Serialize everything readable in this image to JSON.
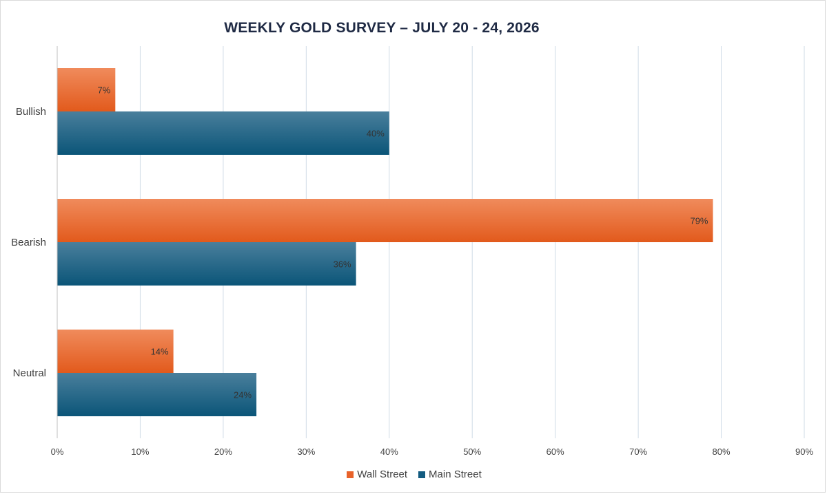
{
  "chart_data": {
    "type": "bar",
    "orientation": "horizontal",
    "title": "WEEKLY GOLD SURVEY – JULY 20 - 24, 2026",
    "categories": [
      "Bullish",
      "Bearish",
      "Neutral"
    ],
    "series": [
      {
        "name": "Wall Street",
        "values": [
          7,
          79,
          14
        ],
        "color": "#e8622a"
      },
      {
        "name": "Main Street",
        "values": [
          40,
          36,
          24
        ],
        "color": "#125b80"
      }
    ],
    "data_labels": {
      "Wall Street": [
        "7%",
        "79%",
        "14%"
      ],
      "Main Street": [
        "40%",
        "36%",
        "24%"
      ]
    },
    "x_ticks": [
      "0%",
      "10%",
      "20%",
      "30%",
      "40%",
      "50%",
      "60%",
      "70%",
      "80%",
      "90%"
    ],
    "xlim": [
      0,
      90
    ],
    "grid": true,
    "legend_position": "bottom",
    "xlabel": "",
    "ylabel": ""
  }
}
